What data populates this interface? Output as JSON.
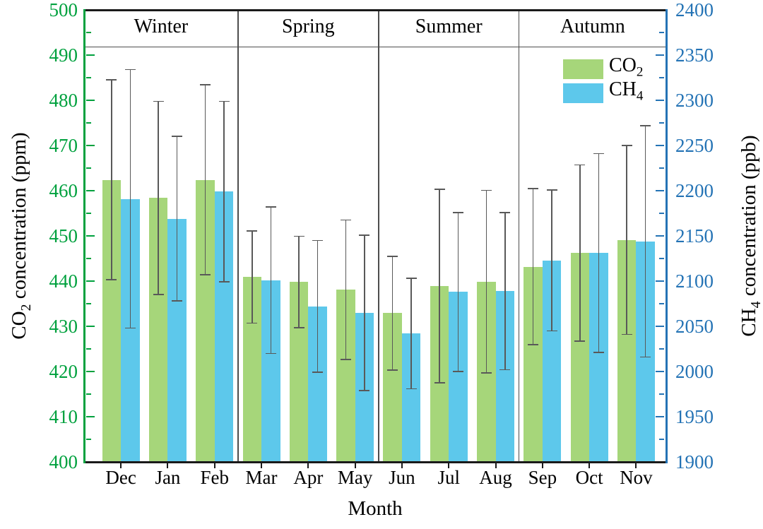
{
  "chart_data": {
    "type": "bar",
    "xlabel": "Month",
    "categories": [
      "Dec",
      "Jan",
      "Feb",
      "Mar",
      "Apr",
      "May",
      "Jun",
      "Jul",
      "Aug",
      "Sep",
      "Oct",
      "Nov"
    ],
    "season_bands": [
      "Winter",
      "Spring",
      "Summer",
      "Autumn"
    ],
    "months_per_band": 3,
    "grid": "off",
    "legend_position": "upper-right-inside",
    "left_axis": {
      "label_prefix": "CO",
      "label_sub": "2",
      "label_suffix": " concentration (ppm)",
      "min": 400,
      "max": 500,
      "major_step": 10,
      "minor_step": 5,
      "tick_labels": [
        "400",
        "410",
        "420",
        "430",
        "440",
        "450",
        "460",
        "470",
        "480",
        "490",
        "500"
      ],
      "color": "#00A13E"
    },
    "right_axis": {
      "label_prefix": "CH",
      "label_sub": "4",
      "label_suffix": " concentration (ppb)",
      "min": 1900,
      "max": 2400,
      "major_step": 50,
      "minor_step": 25,
      "tick_labels": [
        "1900",
        "1950",
        "2000",
        "2050",
        "2100",
        "2150",
        "2200",
        "2250",
        "2300",
        "2350",
        "2400"
      ],
      "color": "#2473B5"
    },
    "series": [
      {
        "name_prefix": "CO",
        "name_sub": "2",
        "axis": "left",
        "color": "#A6D67A",
        "values": [
          462.4,
          458.4,
          462.4,
          440.9,
          439.8,
          438.1,
          432.9,
          438.9,
          439.9,
          443.2,
          446.2,
          449.1
        ],
        "errors": [
          22.1,
          21.4,
          21.0,
          10.2,
          10.1,
          15.4,
          12.6,
          21.4,
          20.2,
          17.3,
          19.5,
          20.9
        ]
      },
      {
        "name_prefix": "CH",
        "name_sub": "4",
        "axis": "right",
        "color": "#5DC8EB",
        "values": [
          2191,
          2169,
          2199,
          2101,
          2072,
          2065,
          2042,
          2088,
          2089,
          2123,
          2131,
          2144
        ],
        "errors": [
          143,
          91,
          100,
          81,
          73,
          86,
          61,
          88,
          87,
          78,
          110,
          128
        ]
      }
    ],
    "error_bar_color": "#595959",
    "frame_color": "#1a1a1a",
    "separator_color": "#4d4d4d"
  }
}
